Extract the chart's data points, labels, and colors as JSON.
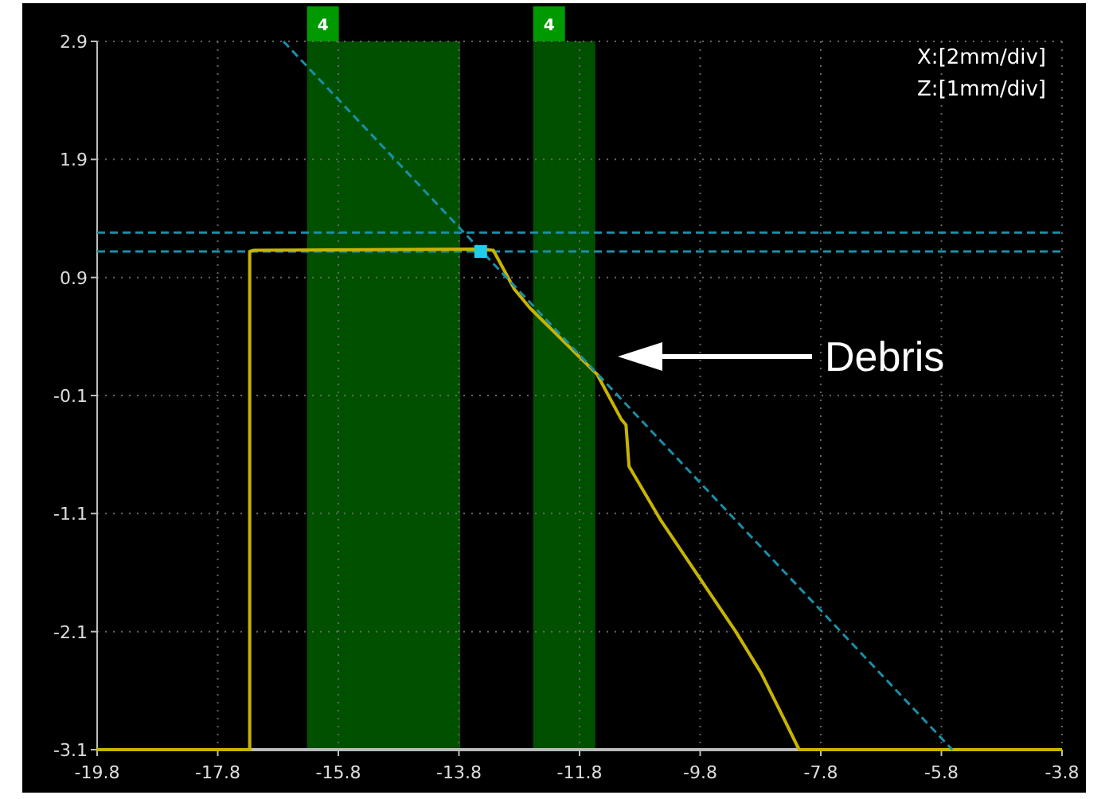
{
  "chart_data": {
    "type": "line",
    "xlim": [
      -19.8,
      -3.8
    ],
    "ylim": [
      -3.1,
      2.9
    ],
    "xticks": [
      -19.8,
      -17.8,
      -15.8,
      -13.8,
      -11.8,
      -9.8,
      -7.8,
      -5.8,
      -3.8
    ],
    "yticks": [
      2.9,
      1.9,
      0.9,
      -0.1,
      -1.1,
      -2.1,
      -3.1
    ],
    "grid": true,
    "series": [
      {
        "color": "#c8b400",
        "x": [
          -19.8,
          -17.27,
          -17.27,
          -17.2,
          -13.5,
          -13.23,
          -12.88,
          -12.62,
          -11.51,
          -11.11,
          -11.03,
          -10.98,
          -10.45,
          -9.21,
          -8.79,
          -8.39,
          -8.16,
          -3.8
        ],
        "values": [
          -3.1,
          -3.1,
          1.12,
          1.13,
          1.14,
          1.13,
          0.8,
          0.64,
          0.08,
          -0.3,
          -0.35,
          -0.7,
          -1.16,
          -2.1,
          -2.45,
          -2.86,
          -3.1,
          -3.1
        ]
      },
      {
        "type": "line",
        "color": "#1a8fa8",
        "line_style": "dashed",
        "x": [
          -16.71,
          -5.62
        ],
        "values": [
          2.9,
          -3.1
        ]
      },
      {
        "type": "scatter",
        "color": "#22ccee",
        "marker": "square",
        "x": [
          -13.44
        ],
        "values": [
          1.12
        ]
      }
    ],
    "ref_lines": [
      {
        "axis": "y",
        "value": 1.28,
        "color": "#1a8fa8",
        "line_style": "dashed"
      },
      {
        "axis": "y",
        "value": 1.12,
        "color": "#1a8fa8",
        "line_style": "dashed"
      }
    ],
    "bands": [
      {
        "axis": "x",
        "from": -16.32,
        "to": -13.78,
        "label": "4",
        "color": "#005000"
      },
      {
        "axis": "x",
        "from": -12.57,
        "to": -11.54,
        "label": "4",
        "color": "#005000"
      }
    ],
    "annotations": [
      "X:[2mm/div]",
      "Z:[1mm/div]",
      "Debris"
    ]
  }
}
